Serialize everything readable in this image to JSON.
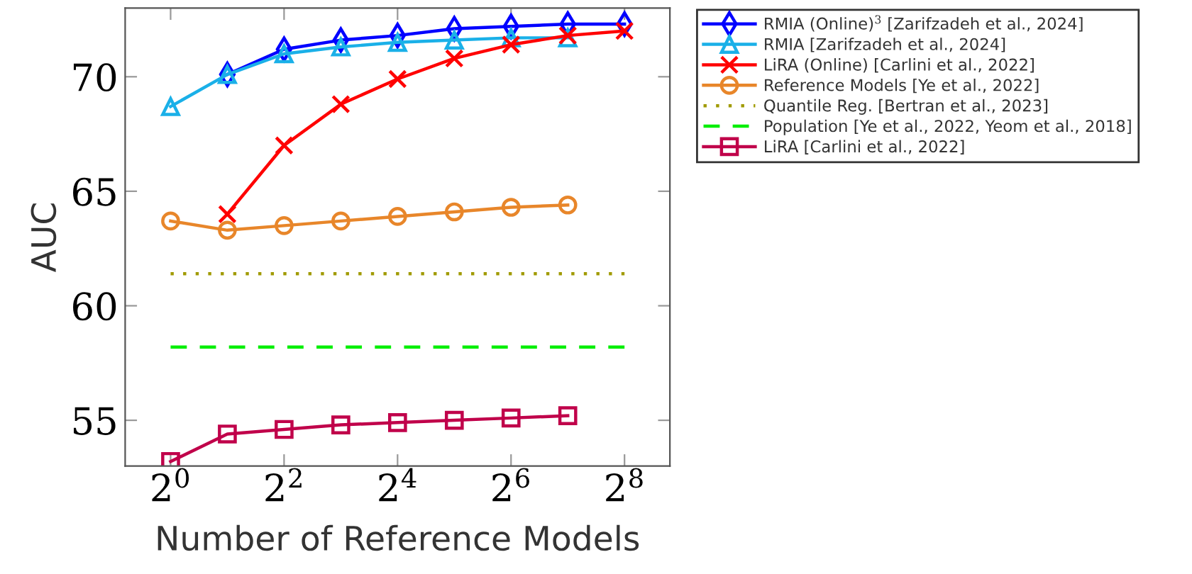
{
  "chart_data": {
    "type": "line",
    "xlabel": "Number of Reference Models",
    "ylabel": "AUC",
    "log": "x",
    "xlim": [
      0.574,
      445.7
    ],
    "xticks": [
      {
        "value": 1,
        "label": "2$^{0}$"
      },
      {
        "value": 4,
        "label": "2$^{2}$"
      },
      {
        "value": 16,
        "label": "2$^{4}$"
      },
      {
        "value": 64,
        "label": "2$^{6}$"
      },
      {
        "value": 256,
        "label": "2$^{8}$"
      }
    ],
    "ylim": [
      53,
      73
    ],
    "yticks": [
      55,
      60,
      65,
      70
    ],
    "grid": false,
    "legend": "top right",
    "series": [
      {
        "name": "RMIA (Online)$^{3}$ [Zarifzadeh et al., 2024]",
        "color": "#0000ff",
        "marker": "diamond",
        "line_style": "solid",
        "x": [
          2,
          4,
          8,
          16,
          32,
          64,
          128,
          256
        ],
        "values": [
          70.1,
          71.2,
          71.6,
          71.8,
          72.1,
          72.2,
          72.3,
          72.3
        ]
      },
      {
        "name": "RMIA [Zarifzadeh et al., 2024]",
        "color": "#1ab0e8",
        "marker": "triangle",
        "line_style": "solid",
        "x": [
          1,
          2,
          4,
          8,
          16,
          32,
          64,
          128
        ],
        "values": [
          68.7,
          70.1,
          71.0,
          71.3,
          71.5,
          71.6,
          71.7,
          71.7
        ]
      },
      {
        "name": "LiRA (Online) [Carlini et al., 2022]",
        "color": "#ff0000",
        "marker": "cross",
        "line_style": "solid",
        "x": [
          2,
          4,
          8,
          16,
          32,
          64,
          128,
          256
        ],
        "values": [
          64.0,
          67.0,
          68.8,
          69.9,
          70.8,
          71.4,
          71.8,
          72.0
        ]
      },
      {
        "name": "Reference Models [Ye et al., 2022]",
        "color": "#e8862a",
        "marker": "circle",
        "line_style": "solid",
        "x": [
          1,
          2,
          4,
          8,
          16,
          32,
          64,
          128
        ],
        "values": [
          63.7,
          63.3,
          63.5,
          63.7,
          63.9,
          64.1,
          64.3,
          64.4
        ]
      },
      {
        "name": "Quantile Reg. [Bertran et al., 2023]",
        "color": "#a09a00",
        "marker": "none",
        "line_style": "dotted",
        "x": [
          1,
          256
        ],
        "values": [
          61.4,
          61.4
        ]
      },
      {
        "name": "Population [Ye et al., 2022, Yeom et al., 2018]",
        "color": "#00ee00",
        "marker": "none",
        "line_style": "dashed",
        "x": [
          1,
          256
        ],
        "values": [
          58.2,
          58.2
        ]
      },
      {
        "name": "LiRA [Carlini et al., 2022]",
        "color": "#c0004a",
        "marker": "square",
        "line_style": "solid",
        "x": [
          1,
          2,
          4,
          8,
          16,
          32,
          64,
          128
        ],
        "values": [
          53.2,
          54.4,
          54.6,
          54.8,
          54.9,
          55.0,
          55.1,
          55.2
        ]
      }
    ]
  }
}
